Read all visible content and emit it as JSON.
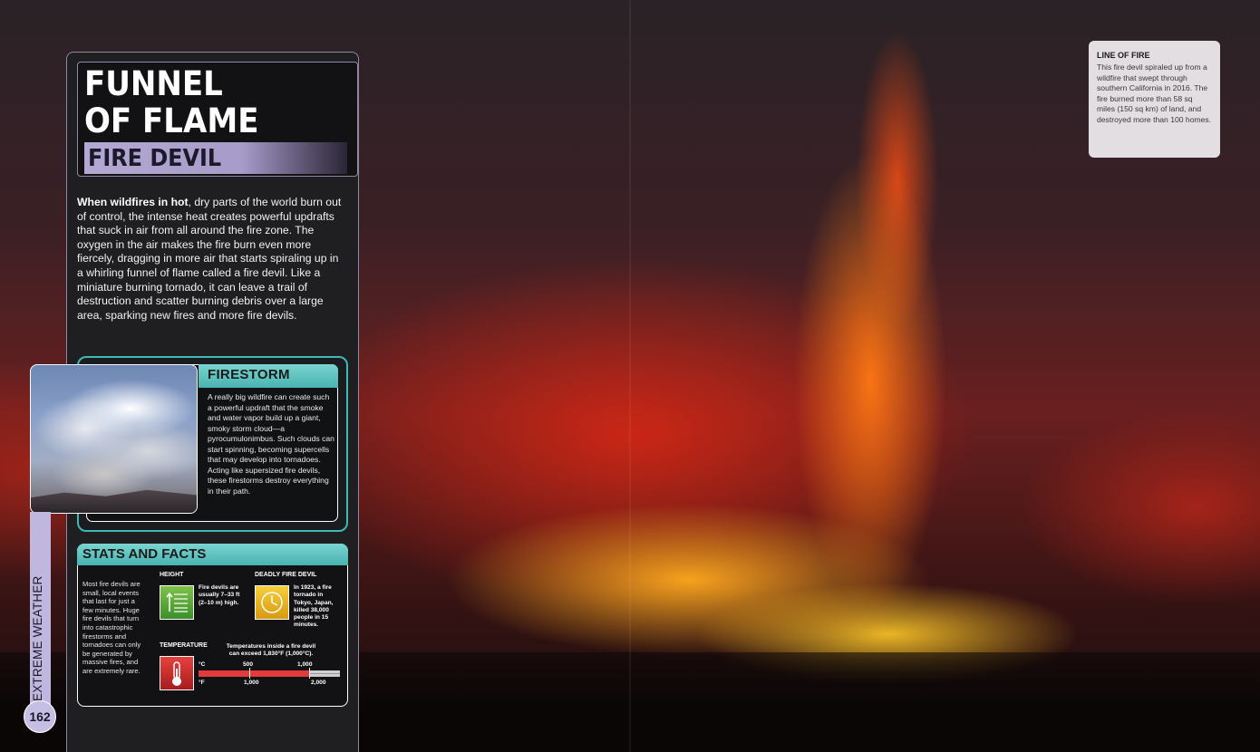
{
  "page": {
    "title_line1": "FUNNEL",
    "title_line2": "OF FLAME",
    "subtitle": "FIRE DEVIL",
    "intro_lead": "When wildfires in hot",
    "intro_rest": ", dry parts of the world burn out of control, the intense heat creates powerful updrafts that suck in air from all around the fire zone. The oxygen in the air makes the fire burn even more fiercely, dragging in more air that starts spiraling up in a whirling funnel of flame called a fire devil. Like a miniature burning tornado, it can leave a trail of destruction and scatter burning debris over a large area, sparking new fires and more fire devils.",
    "section_label": "EXTREME WEATHER",
    "page_number": "162"
  },
  "firestorm": {
    "heading": "FIRESTORM",
    "text": "A really big wildfire can create such a powerful updraft that the smoke and water vapor build up a giant, smoky storm cloud—a pyrocumulonimbus. Such clouds can start spinning, becoming supercells that may develop into tornadoes. Acting like supersized fire devils, these firestorms destroy everything in their path."
  },
  "stats": {
    "heading": "STATS AND FACTS",
    "left_text": "Most fire devils are small, local events that last for just a few minutes. Huge fire devils that turn into catastrophic firestorms and tornadoes can only be generated by massive fires, and are extremely rare.",
    "height_label": "HEIGHT",
    "height_text": "Fire devils are usually 7–33 ft (2–10 m) high.",
    "deadly_label": "DEADLY FIRE DEVIL",
    "deadly_text": "In 1923, a fire tornado in Tokyo, Japan, killed 38,000 people in 15 minutes.",
    "temp_label": "TEMPERATURE",
    "temp_text": "Temperatures inside a fire devil can exceed 1,830°F (1,000°C).",
    "unit_c": "°C",
    "unit_f": "°F",
    "c_500": "500",
    "c_1000": "1,000",
    "f_1000": "1,000",
    "f_2000": "2,000",
    "temperature_fill_fraction": 0.78
  },
  "caption": {
    "heading": "LINE OF FIRE",
    "text": "This fire devil spiraled up from a wildfire that swept through southern California in 2016. The fire burned more than 58 sq miles (150 sq km) of land, and destroyed more than 100 homes."
  },
  "colors": {
    "accent_teal": "#49b3b0",
    "accent_lilac": "#b4a9d2",
    "panel_bg": "#1f1f22"
  },
  "icons": [
    "height-ruler-icon",
    "clock-icon",
    "thermometer-icon"
  ]
}
